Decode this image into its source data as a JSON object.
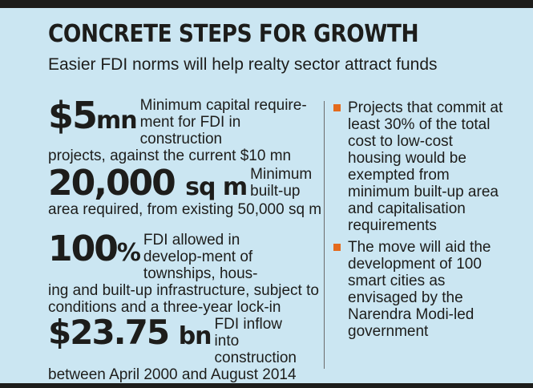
{
  "header": {
    "title": "CONCRETE STEPS FOR GROWTH",
    "subtitle": "Easier FDI norms will help realty sector attract funds"
  },
  "stats": [
    {
      "figure": "$5",
      "unit": "mn",
      "side_text": "Minimum capital require-ment for FDI in construction",
      "cont_text": "projects, against the current $10 mn"
    },
    {
      "figure": "20,000",
      "unit": "sq m",
      "side_text": "Minimum built-up",
      "cont_text": "area required, from existing 50,000 sq m"
    },
    {
      "figure": "100",
      "unit": "%",
      "side_text": "FDI allowed in develop-ment of townships, hous-",
      "cont_text": "ing and built-up infrastructure, subject to conditions and a three-year lock-in"
    },
    {
      "figure": "$23.75",
      "unit": "bn",
      "side_text": "FDI inflow into construction",
      "cont_text": "between April 2000 and August 2014"
    }
  ],
  "bullets": [
    "Projects that commit at least 30% of the total cost to low-cost housing would be exempted from minimum built-up area and capitalisation requirements",
    "The move will aid the development of 100 smart cities as envisaged by the Narendra Modi-led government"
  ],
  "colors": {
    "background": "#cbe6f2",
    "bullet": "#e46b1e",
    "text": "#1d1d1b"
  }
}
